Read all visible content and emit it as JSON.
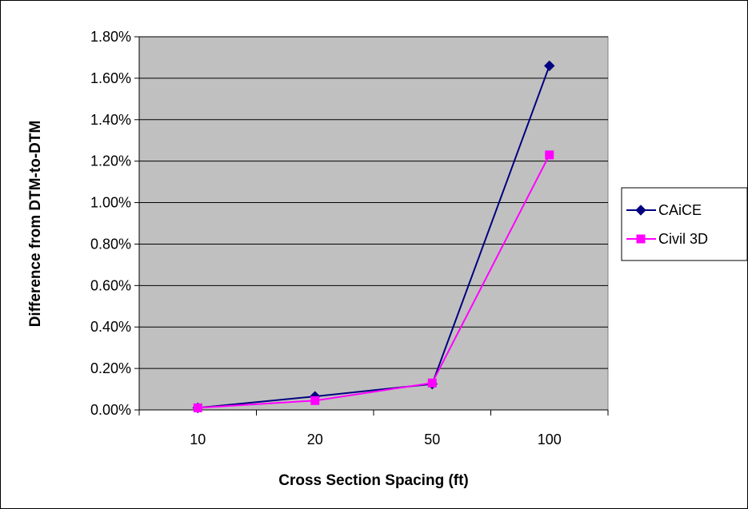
{
  "chart_data": {
    "type": "line",
    "categories": [
      "10",
      "20",
      "50",
      "100"
    ],
    "xlabel": "Cross Section Spacing (ft)",
    "ylabel": "Difference from DTM-to-DTM",
    "ylim": [
      0,
      0.018
    ],
    "yticks": [
      "0.00%",
      "0.20%",
      "0.40%",
      "0.60%",
      "0.80%",
      "1.00%",
      "1.20%",
      "1.40%",
      "1.60%",
      "1.80%"
    ],
    "grid": true,
    "legend_position": "right",
    "plot_background": "#c0c0c0",
    "series": [
      {
        "name": "CAiCE",
        "color": "#000080",
        "marker": "diamond",
        "values": [
          0.0001,
          0.00065,
          0.00125,
          0.0166
        ]
      },
      {
        "name": "Civil 3D",
        "color": "#ff00ff",
        "marker": "square",
        "values": [
          0.0001,
          0.00045,
          0.0013,
          0.0123
        ]
      }
    ]
  }
}
